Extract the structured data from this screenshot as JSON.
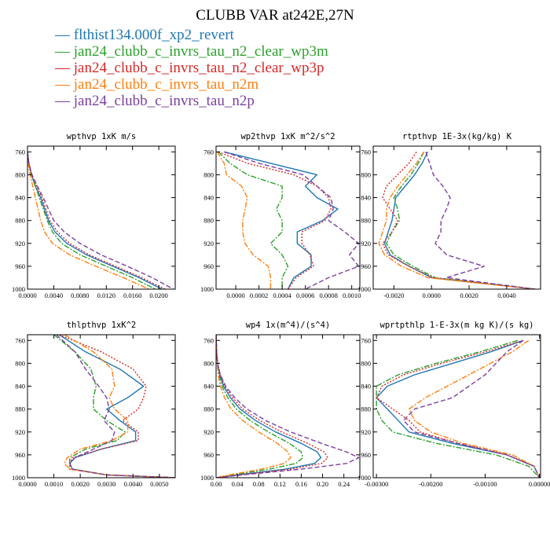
{
  "figure": {
    "title": "CLUBB VAR at242E,27N",
    "legend": [
      {
        "name": "flthist134.000f_xp2_revert",
        "color": "#1f77b4",
        "dash": "solid"
      },
      {
        "name": "jan24_clubb_c_invrs_tau_n2_clear_wp3m",
        "color": "#2ca02c",
        "dash": "dashdot"
      },
      {
        "name": "jan24_clubb_c_invrs_tau_n2_clear_wp3p",
        "color": "#d62728",
        "dash": "dot"
      },
      {
        "name": "jan24_clubb_c_invrs_tau_n2m",
        "color": "#ff7f0e",
        "dash": "dashdot"
      },
      {
        "name": "jan24_clubb_c_invrs_tau_n2p",
        "color": "#7b3fa0",
        "dash": "dash"
      }
    ]
  },
  "chart_data": [
    {
      "type": "line",
      "title": "wpthvp  1xK m/s",
      "xlim": [
        0.0,
        0.0225
      ],
      "ylim": [
        1000,
        750
      ],
      "xticks": [
        "0.0000",
        "0.0040",
        "0.0080",
        "0.0120",
        "0.0160",
        "0.0200"
      ],
      "xtick_values": [
        0.0,
        0.004,
        0.008,
        0.012,
        0.016,
        0.02
      ],
      "yticks": [
        760,
        800,
        840,
        880,
        920,
        960,
        1000
      ],
      "y": [
        760,
        780,
        800,
        820,
        840,
        860,
        880,
        900,
        920,
        940,
        960,
        980,
        1000
      ],
      "series": [
        {
          "values": [
            0.0,
            0.0002,
            0.0006,
            0.0012,
            0.002,
            0.0026,
            0.0032,
            0.0042,
            0.006,
            0.009,
            0.013,
            0.017,
            0.0205
          ]
        },
        {
          "values": [
            0.0,
            0.0002,
            0.0006,
            0.0012,
            0.0018,
            0.0024,
            0.003,
            0.0038,
            0.0052,
            0.008,
            0.012,
            0.016,
            0.0195
          ]
        },
        {
          "values": [
            0.0,
            0.0002,
            0.0006,
            0.0014,
            0.0022,
            0.0028,
            0.0034,
            0.0046,
            0.0064,
            0.0094,
            0.0134,
            0.0174,
            0.021
          ]
        },
        {
          "values": [
            0.0,
            0.0001,
            0.0004,
            0.0008,
            0.0012,
            0.0016,
            0.002,
            0.0026,
            0.0038,
            0.0064,
            0.0104,
            0.0146,
            0.0185
          ]
        },
        {
          "values": [
            0.0,
            0.0002,
            0.0007,
            0.0015,
            0.0024,
            0.0032,
            0.004,
            0.0056,
            0.008,
            0.0112,
            0.0152,
            0.019,
            0.0222
          ]
        }
      ]
    },
    {
      "type": "line",
      "title": "wp2thvp  1xK m^2/s^2",
      "xlim": [
        -0.00017,
        0.00107
      ],
      "ylim": [
        1000,
        750
      ],
      "xticks": [
        "0.0000",
        "0.0002",
        "0.0004",
        "0.0006",
        "0.0008",
        "0.0010"
      ],
      "xtick_values": [
        0.0,
        0.0002,
        0.0004,
        0.0006,
        0.0008,
        0.001
      ],
      "yticks": [
        760,
        800,
        840,
        880,
        920,
        960,
        1000
      ],
      "y": [
        760,
        780,
        800,
        820,
        840,
        860,
        880,
        900,
        920,
        940,
        960,
        980,
        1000
      ],
      "series": [
        {
          "values": [
            -0.0001,
            0.0003,
            0.0007,
            0.0006,
            0.0007,
            0.00088,
            0.00075,
            0.00053,
            0.00053,
            0.00065,
            0.00065,
            0.0005,
            0.00045
          ]
        },
        {
          "values": [
            -0.00015,
            -5e-05,
            0.0001,
            0.0004,
            0.0004,
            0.00035,
            0.0004,
            0.0004,
            0.0003,
            0.0004,
            0.00045,
            0.0004,
            0.0004
          ]
        },
        {
          "values": [
            -0.00015,
            0.0001,
            0.0005,
            0.0007,
            0.0008,
            0.00082,
            0.00077,
            0.00057,
            0.00057,
            0.00064,
            0.00067,
            0.00052,
            0.00045
          ]
        },
        {
          "values": [
            -0.00016,
            -0.0001,
            -8e-05,
            5e-05,
            0.0001,
            8e-05,
            6e-05,
            6e-05,
            8e-05,
            0.00015,
            0.00028,
            0.0003,
            0.0003
          ]
        },
        {
          "values": [
            -0.0001,
            0.0002,
            0.00058,
            0.0007,
            0.00082,
            0.00084,
            0.0008,
            0.00094,
            0.00106,
            0.00098,
            0.00106,
            0.0008,
            0.0006
          ]
        }
      ]
    },
    {
      "type": "line",
      "title": "rtpthvp  1E-3x(kg/kg) K",
      "xlim": [
        -0.0031,
        0.0058
      ],
      "ylim": [
        1000,
        750
      ],
      "xticks": [
        "-0.0020",
        "0.0000",
        "0.0020",
        "0.0040"
      ],
      "xtick_values": [
        -0.002,
        0.0,
        0.002,
        0.004
      ],
      "yticks": [
        760,
        800,
        840,
        880,
        920,
        960,
        1000
      ],
      "y": [
        760,
        780,
        800,
        820,
        840,
        860,
        880,
        900,
        920,
        940,
        960,
        980,
        1000
      ],
      "series": [
        {
          "values": [
            -0.0002,
            -0.0005,
            -0.0009,
            -0.0014,
            -0.0019,
            -0.002,
            -0.0021,
            -0.0023,
            -0.0025,
            -0.0022,
            -0.0012,
            0.0,
            0.0055
          ]
        },
        {
          "values": [
            -0.0004,
            -0.0007,
            -0.0011,
            -0.0016,
            -0.002,
            -0.0018,
            -0.0017,
            -0.0021,
            -0.0024,
            -0.002,
            -0.001,
            0.0002,
            0.0055
          ]
        },
        {
          "values": [
            -0.0008,
            -0.0012,
            -0.0018,
            -0.0024,
            -0.0026,
            -0.0022,
            -0.0018,
            -0.0021,
            -0.0026,
            -0.0023,
            -0.0012,
            0.0001,
            0.0055
          ]
        },
        {
          "values": [
            -0.0004,
            -0.0008,
            -0.0013,
            -0.0018,
            -0.0022,
            -0.0024,
            -0.0024,
            -0.0026,
            -0.0028,
            -0.0025,
            -0.0016,
            -0.0002,
            0.0055
          ]
        },
        {
          "values": [
            -0.0003,
            -0.0001,
            0.0001,
            0.0006,
            0.001,
            0.0008,
            0.0005,
            0.0005,
            0.0002,
            0.0008,
            0.0028,
            0.0008,
            0.0055
          ]
        }
      ]
    },
    {
      "type": "line",
      "title": "thlpthvp  1xK^2",
      "xlim": [
        0.0,
        0.0056
      ],
      "ylim": [
        1000,
        750
      ],
      "xticks": [
        "0.0000",
        "0.0010",
        "0.0020",
        "0.0030",
        "0.0040",
        "0.0050"
      ],
      "xtick_values": [
        0.0,
        0.001,
        0.002,
        0.003,
        0.004,
        0.005
      ],
      "yticks": [
        760,
        800,
        840,
        880,
        920,
        960,
        1000
      ],
      "y": [
        750,
        780,
        810,
        840,
        860,
        880,
        900,
        920,
        935,
        950,
        965,
        975,
        985,
        995,
        1000
      ],
      "series": [
        {
          "values": [
            0.0012,
            0.0022,
            0.0035,
            0.0044,
            0.0038,
            0.003,
            0.0035,
            0.0041,
            0.0041,
            0.0028,
            0.0018,
            0.0016,
            0.0017,
            0.003,
            0.0056
          ]
        },
        {
          "values": [
            0.001,
            0.0018,
            0.0024,
            0.0026,
            0.0025,
            0.0025,
            0.003,
            0.0037,
            0.0034,
            0.0022,
            0.0016,
            0.0016,
            0.0017,
            0.003,
            0.0056
          ]
        },
        {
          "values": [
            0.0012,
            0.0028,
            0.004,
            0.0045,
            0.0044,
            0.0042,
            0.0036,
            0.0042,
            0.0042,
            0.0028,
            0.0017,
            0.0016,
            0.0016,
            0.003,
            0.0056
          ]
        },
        {
          "values": [
            0.0014,
            0.0025,
            0.0032,
            0.0033,
            0.0031,
            0.0033,
            0.0038,
            0.0038,
            0.0032,
            0.002,
            0.0015,
            0.0014,
            0.0016,
            0.003,
            0.0056
          ]
        },
        {
          "values": [
            0.0011,
            0.0018,
            0.0022,
            0.0027,
            0.003,
            0.0031,
            0.0029,
            0.0033,
            0.0032,
            0.0025,
            0.0018,
            0.0016,
            0.0017,
            0.003,
            0.0056
          ]
        }
      ]
    },
    {
      "type": "line",
      "title": "wp4  1x(m^4)/(s^4)",
      "xlim": [
        0.0,
        0.27
      ],
      "ylim": [
        1000,
        750
      ],
      "xticks": [
        "0.00",
        "0.04",
        "0.08",
        "0.12",
        "0.16",
        "0.20",
        "0.24"
      ],
      "xtick_values": [
        0.0,
        0.04,
        0.08,
        0.12,
        0.16,
        0.2,
        0.24
      ],
      "yticks": [
        760,
        800,
        840,
        880,
        920,
        960,
        1000
      ],
      "y": [
        750,
        780,
        800,
        820,
        840,
        860,
        880,
        900,
        920,
        940,
        955,
        965,
        975,
        985,
        995,
        1000
      ],
      "series": [
        {
          "values": [
            0.0,
            0.001,
            0.003,
            0.007,
            0.014,
            0.027,
            0.045,
            0.074,
            0.112,
            0.16,
            0.19,
            0.197,
            0.185,
            0.13,
            0.04,
            0.0
          ]
        },
        {
          "values": [
            0.0,
            0.001,
            0.002,
            0.005,
            0.011,
            0.022,
            0.038,
            0.064,
            0.098,
            0.138,
            0.16,
            0.163,
            0.15,
            0.1,
            0.03,
            0.0
          ]
        },
        {
          "values": [
            0.0,
            0.001,
            0.003,
            0.008,
            0.016,
            0.031,
            0.05,
            0.082,
            0.123,
            0.172,
            0.203,
            0.21,
            0.198,
            0.14,
            0.045,
            0.0
          ]
        },
        {
          "values": [
            0.0,
            0.001,
            0.002,
            0.004,
            0.008,
            0.016,
            0.028,
            0.05,
            0.08,
            0.115,
            0.135,
            0.14,
            0.128,
            0.085,
            0.025,
            0.0
          ]
        },
        {
          "values": [
            0.0,
            0.001,
            0.003,
            0.008,
            0.018,
            0.035,
            0.058,
            0.093,
            0.14,
            0.198,
            0.245,
            0.268,
            0.245,
            0.16,
            0.05,
            0.0
          ]
        }
      ]
    },
    {
      "type": "line",
      "title": "wprtpthlp  1-E-3x(m kg K)/(s kg)",
      "xlim": [
        -0.00306,
        2e-05
      ],
      "ylim": [
        1000,
        750
      ],
      "xticks": [
        "-0.00300",
        "-0.00200",
        "-0.00100",
        "0.00000"
      ],
      "xtick_values": [
        -0.003,
        -0.002,
        -0.001,
        0.0
      ],
      "yticks": [
        760,
        800,
        840,
        880,
        920,
        960,
        1000
      ],
      "y": [
        760,
        780,
        800,
        820,
        840,
        860,
        880,
        900,
        920,
        940,
        960,
        980,
        1000
      ],
      "series": [
        {
          "values": [
            -0.0003,
            -0.0009,
            -0.0016,
            -0.0023,
            -0.0028,
            -0.003,
            -0.0028,
            -0.0026,
            -0.0024,
            -0.0016,
            -0.0006,
            -0.0001,
            0.0
          ]
        },
        {
          "values": [
            -0.0004,
            -0.0011,
            -0.0019,
            -0.0026,
            -0.003,
            -0.003,
            -0.003,
            -0.0029,
            -0.0027,
            -0.0019,
            -0.0008,
            -0.0002,
            0.0
          ]
        },
        {
          "values": [
            -0.0003,
            -0.001,
            -0.0018,
            -0.0025,
            -0.0029,
            -0.003,
            -0.0027,
            -0.0024,
            -0.0022,
            -0.0015,
            -0.0006,
            -0.0001,
            0.0
          ]
        },
        {
          "values": [
            -0.0002,
            -0.0005,
            -0.0009,
            -0.0013,
            -0.0017,
            -0.0021,
            -0.0024,
            -0.0023,
            -0.002,
            -0.0014,
            -0.0005,
            -0.0001,
            0.0
          ]
        },
        {
          "values": [
            -0.0003,
            -0.0006,
            -0.0008,
            -0.001,
            -0.0013,
            -0.0016,
            -0.0023,
            -0.0025,
            -0.0023,
            -0.0015,
            -0.0006,
            -0.0001,
            0.0
          ]
        }
      ]
    }
  ]
}
